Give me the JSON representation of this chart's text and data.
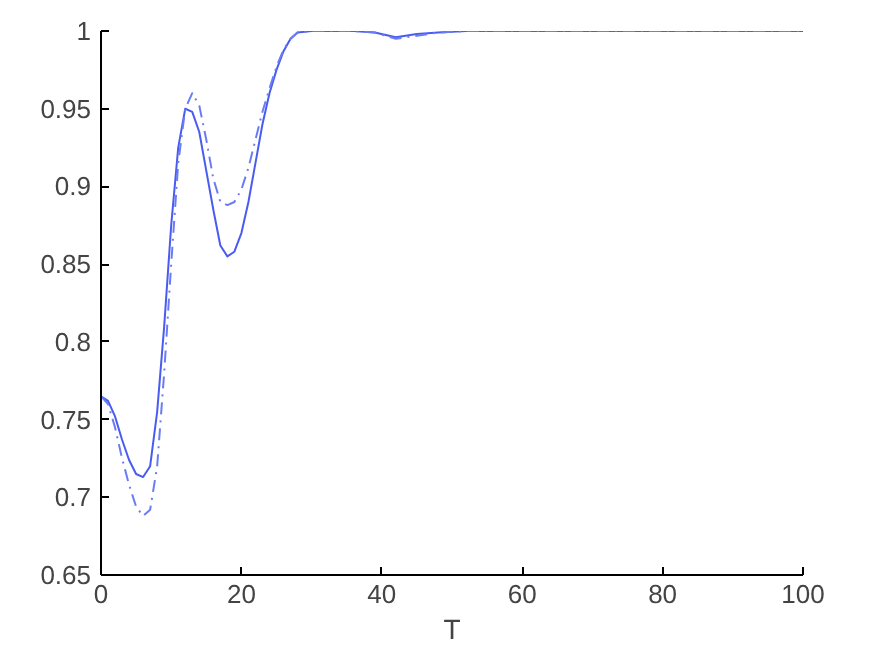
{
  "chart_data": {
    "type": "line",
    "xlabel": "T",
    "xlim": [
      0,
      100
    ],
    "ylim": [
      0.65,
      1
    ],
    "xticks": [
      0,
      20,
      40,
      60,
      80,
      100
    ],
    "yticks": [
      0.65,
      0.7,
      0.75,
      0.8,
      0.85,
      0.9,
      0.95,
      1
    ],
    "grid": false,
    "series": [
      {
        "color": "#4a5cf0",
        "line_style": "solid",
        "x": [
          0,
          1,
          2,
          3,
          4,
          5,
          6,
          7,
          8,
          9,
          10,
          11,
          12,
          13,
          14,
          15,
          16,
          17,
          18,
          19,
          20,
          21,
          22,
          23,
          24,
          25,
          26,
          27,
          28,
          30,
          33,
          36,
          39,
          42,
          45,
          48,
          52,
          60,
          70,
          80,
          90,
          100
        ],
        "values": [
          0.765,
          0.762,
          0.752,
          0.737,
          0.724,
          0.715,
          0.713,
          0.72,
          0.755,
          0.81,
          0.875,
          0.925,
          0.95,
          0.948,
          0.935,
          0.91,
          0.885,
          0.862,
          0.855,
          0.858,
          0.87,
          0.89,
          0.915,
          0.94,
          0.96,
          0.975,
          0.987,
          0.995,
          0.999,
          1,
          1,
          1,
          0.999,
          0.996,
          0.998,
          0.999,
          1,
          1,
          1,
          1,
          1,
          1
        ]
      },
      {
        "color": "#6a7cf5",
        "line_style": "dashed",
        "x": [
          0,
          1,
          2,
          3,
          4,
          5,
          6,
          7,
          8,
          9,
          10,
          11,
          12,
          13,
          14,
          15,
          16,
          17,
          18,
          19,
          20,
          21,
          22,
          23,
          24,
          25,
          26,
          27,
          28,
          30,
          33,
          36,
          39,
          42,
          45,
          48,
          52,
          60,
          70,
          80,
          90,
          100
        ],
        "values": [
          0.765,
          0.76,
          0.745,
          0.725,
          0.708,
          0.694,
          0.688,
          0.692,
          0.72,
          0.78,
          0.85,
          0.915,
          0.95,
          0.96,
          0.952,
          0.93,
          0.905,
          0.89,
          0.888,
          0.89,
          0.898,
          0.912,
          0.93,
          0.948,
          0.963,
          0.977,
          0.988,
          0.995,
          0.999,
          1,
          1,
          1,
          0.999,
          0.995,
          0.997,
          0.999,
          1,
          1,
          1,
          1,
          1,
          1
        ]
      }
    ]
  }
}
